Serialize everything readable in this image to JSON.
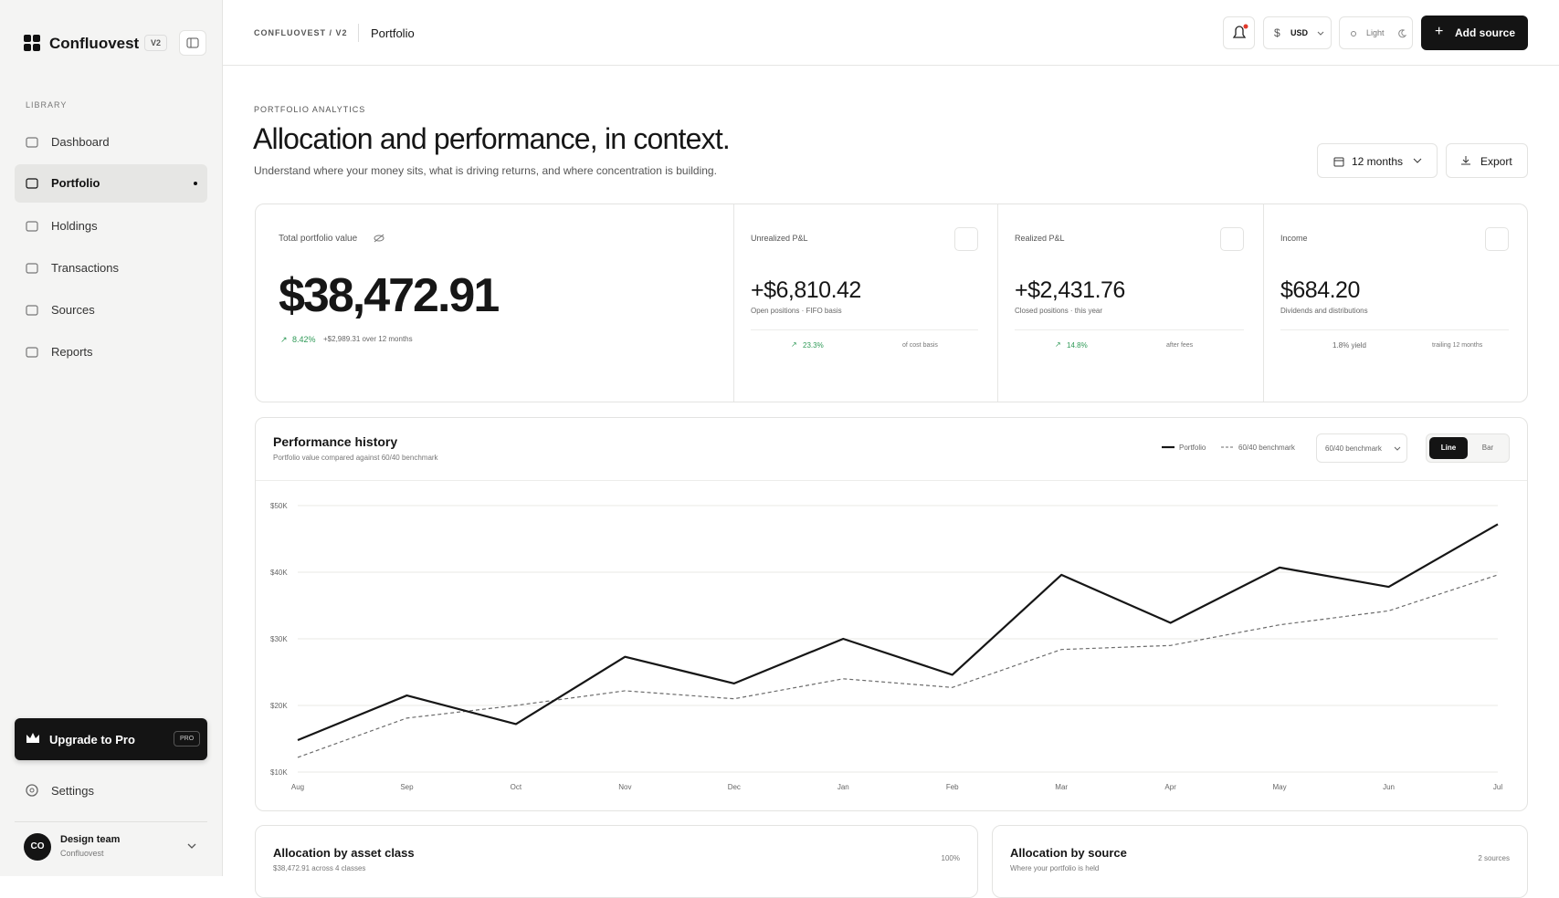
{
  "sidebar": {
    "brand": "Confluovest",
    "version": "V2",
    "section": "LIBRARY",
    "nav": [
      "Dashboard",
      "Portfolio",
      "Holdings",
      "Transactions",
      "Sources",
      "Reports"
    ],
    "active": 1,
    "upgrade": {
      "label": "Upgrade to Pro",
      "badge": "PRO"
    },
    "settings": "Settings",
    "user": {
      "initials": "CO",
      "name": "Design team",
      "org": "Confluovest"
    }
  },
  "header": {
    "breadcrumb": "CONFLUOVEST / V2",
    "page": "Portfolio",
    "currency": "USD",
    "theme": "Light",
    "action": "Add source"
  },
  "intro": {
    "eyebrow": "PORTFOLIO ANALYTICS",
    "title": "Allocation and performance, in context.",
    "subtitle": "Understand where your money sits, what is driving returns, and where concentration is building.",
    "range": "12 months",
    "export": "Export"
  },
  "kpis": {
    "total": {
      "label": "Total portfolio value",
      "value": "$38,472.91",
      "change": "8.42%",
      "note": "+$2,989.31 over 12 months"
    },
    "cards": [
      {
        "label": "Unrealized P&L",
        "value": "+$6,810.42",
        "sub": "Open positions · FIFO basis",
        "stat": "23.3%",
        "note": "of cost basis"
      },
      {
        "label": "Realized P&L",
        "value": "+$2,431.76",
        "sub": "Closed positions · this year",
        "stat": "14.8%",
        "note": "after fees"
      },
      {
        "label": "Income",
        "value": "$684.20",
        "sub": "Dividends and distributions",
        "stat": "1.8% yield",
        "note": "trailing 12 months"
      }
    ]
  },
  "performance": {
    "title": "Performance history",
    "subtitle": "Portfolio value compared against 60/40 benchmark",
    "benchmark_select": "60/40 benchmark",
    "modes": [
      "Line",
      "Bar"
    ]
  },
  "chart_data": {
    "type": "line",
    "categories": [
      "Aug",
      "Sep",
      "Oct",
      "Nov",
      "Dec",
      "Jan",
      "Feb",
      "Mar",
      "Apr",
      "May",
      "Jun",
      "Jul"
    ],
    "series": [
      {
        "name": "Portfolio",
        "color": "#161616",
        "line_style": "solid",
        "values": [
          14800,
          21500,
          17200,
          27300,
          23300,
          30000,
          24600,
          39600,
          32400,
          40700,
          37800,
          47200
        ]
      },
      {
        "name": "60/40 benchmark",
        "color": "#6b6b6b",
        "line_style": "dashed",
        "values": [
          12200,
          18100,
          20000,
          22200,
          21000,
          24000,
          22700,
          28400,
          29000,
          32100,
          34200,
          39600
        ]
      }
    ],
    "ylim": [
      10000,
      50000
    ],
    "yticks": [
      {
        "value": 10000,
        "label": "$10K"
      },
      {
        "value": 20000,
        "label": "$20K"
      },
      {
        "value": 30000,
        "label": "$30K"
      },
      {
        "value": 40000,
        "label": "$40K"
      },
      {
        "value": 50000,
        "label": "$50K"
      }
    ],
    "grid": true
  },
  "allocation": [
    {
      "title": "Allocation by asset class",
      "subtitle": "$38,472.91 across 4 classes",
      "meta": "100%"
    },
    {
      "title": "Allocation by source",
      "subtitle": "Where your portfolio is held",
      "meta": "2 sources"
    }
  ]
}
